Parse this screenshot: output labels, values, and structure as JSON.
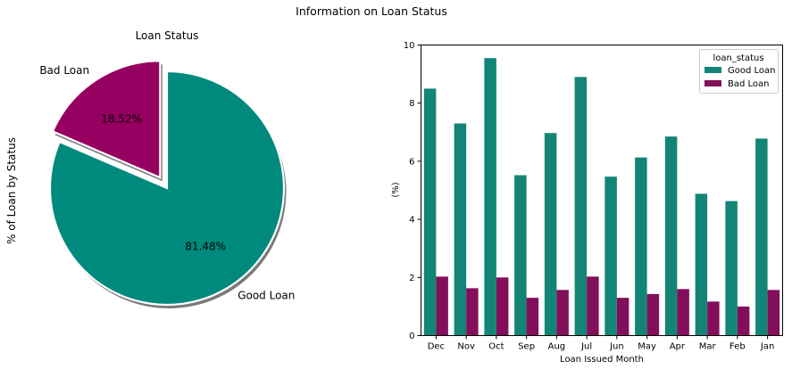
{
  "figure": {
    "suptitle": "Information on Loan Status"
  },
  "chart_data": [
    {
      "type": "pie",
      "title": "Loan Status",
      "ylabel": "% of Loan by Status",
      "slices": [
        {
          "label": "Good Loan",
          "value": 81.48,
          "pct_label": "81.48%",
          "color": "#008a7e",
          "exploded": false
        },
        {
          "label": "Bad Loan",
          "value": 18.52,
          "pct_label": "18.52%",
          "color": "#960061",
          "exploded": true
        }
      ],
      "shadow": true
    },
    {
      "type": "bar",
      "xlabel": "Loan Issued Month",
      "ylabel": "(%)",
      "ylim": [
        0,
        10
      ],
      "yticks": [
        0,
        2,
        4,
        6,
        8,
        10
      ],
      "categories": [
        "Dec",
        "Nov",
        "Oct",
        "Sep",
        "Aug",
        "Jul",
        "Jun",
        "May",
        "Apr",
        "Mar",
        "Feb",
        "Jan"
      ],
      "legend": {
        "title": "loan_status",
        "position": "top-right"
      },
      "series": [
        {
          "name": "Good Loan",
          "color": "#138577",
          "values": [
            8.5,
            7.3,
            9.55,
            5.52,
            6.97,
            8.9,
            5.47,
            6.13,
            6.85,
            4.88,
            4.63,
            6.78
          ]
        },
        {
          "name": "Bad Loan",
          "color": "#830f5b",
          "values": [
            2.03,
            1.63,
            2.0,
            1.3,
            1.57,
            2.03,
            1.3,
            1.43,
            1.6,
            1.17,
            1.0,
            1.57
          ]
        }
      ]
    }
  ]
}
